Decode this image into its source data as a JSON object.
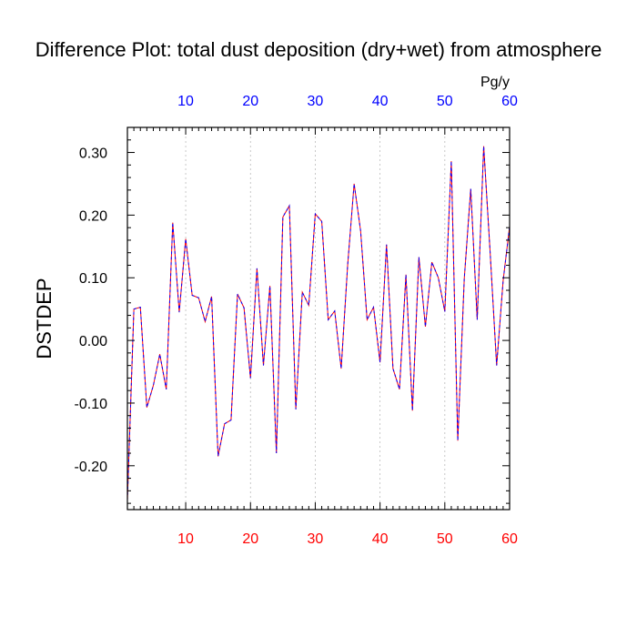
{
  "chart_data": {
    "type": "line",
    "title": "Difference Plot: total dust deposition (dry+wet) from atmosphere",
    "units": "Pg/y",
    "ylabel": "DSTDEP",
    "xlabel": "",
    "xlim": [
      1,
      60
    ],
    "ylim": [
      -0.27,
      0.34
    ],
    "x_ticks": [
      10,
      20,
      30,
      40,
      50,
      60
    ],
    "y_ticks": [
      -0.2,
      -0.1,
      0.0,
      0.1,
      0.2,
      0.3
    ],
    "y_tick_labels": [
      "-0.20",
      "-0.10",
      "0.00",
      "0.10",
      "0.20",
      "0.30"
    ],
    "grid": "vertical dashed at major x ticks",
    "colors": {
      "bottom_ticks": "#ff0000",
      "top_ticks": "#0000ff",
      "series_line_1": "#ff0000",
      "series_line_2": "#0000ff"
    },
    "x": [
      1,
      2,
      3,
      4,
      5,
      6,
      7,
      8,
      9,
      10,
      11,
      12,
      13,
      14,
      15,
      16,
      17,
      18,
      19,
      20,
      21,
      22,
      23,
      24,
      25,
      26,
      27,
      28,
      29,
      30,
      31,
      32,
      33,
      34,
      35,
      36,
      37,
      38,
      39,
      40,
      41,
      42,
      43,
      44,
      45,
      46,
      47,
      48,
      49,
      50,
      51,
      52,
      53,
      54,
      55,
      56,
      57,
      58,
      59,
      60
    ],
    "values": [
      -0.255,
      0.05,
      0.053,
      -0.107,
      -0.072,
      -0.022,
      -0.078,
      0.188,
      0.045,
      0.162,
      0.072,
      0.068,
      0.03,
      0.07,
      -0.185,
      -0.133,
      -0.127,
      0.074,
      0.052,
      -0.06,
      0.115,
      -0.04,
      0.087,
      -0.18,
      0.197,
      0.215,
      -0.11,
      0.077,
      0.056,
      0.202,
      0.19,
      0.033,
      0.047,
      -0.045,
      0.12,
      0.25,
      0.175,
      0.033,
      0.053,
      -0.035,
      0.153,
      -0.045,
      -0.078,
      0.105,
      -0.112,
      0.133,
      0.022,
      0.125,
      0.1,
      0.046,
      0.286,
      -0.16,
      0.098,
      0.242,
      0.033,
      0.31,
      0.14,
      -0.04,
      0.095,
      0.182
    ]
  }
}
